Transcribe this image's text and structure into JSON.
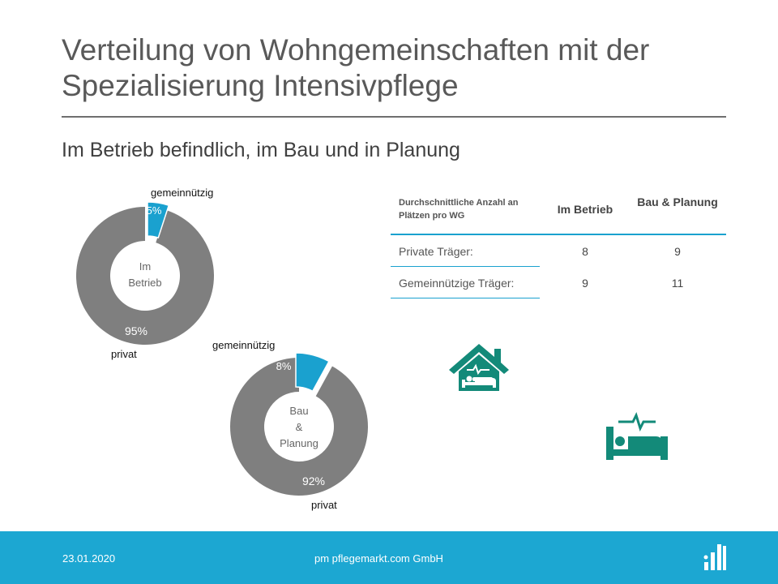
{
  "title": "Verteilung von Wohngemeinschaften mit der Spezialisierung Intensivpflege",
  "subtitle": "Im Betrieb befindlich, im Bau und in Planung",
  "colors": {
    "privat": "#7f7f7f",
    "gemeinnuetzig": "#1aa1cf",
    "icon": "#138a79",
    "footer": "#1ca7d2"
  },
  "chart_data": [
    {
      "type": "pie",
      "center_label": [
        "Im",
        "Betrieb"
      ],
      "slices": [
        {
          "name": "gemeinnützig",
          "value": 5,
          "label": "5%"
        },
        {
          "name": "privat",
          "value": 95,
          "label": "95%"
        }
      ]
    },
    {
      "type": "pie",
      "center_label": [
        "Bau",
        "&",
        "Planung"
      ],
      "slices": [
        {
          "name": "gemeinnützig",
          "value": 8,
          "label": "8%"
        },
        {
          "name": "privat",
          "value": 92,
          "label": "92%"
        }
      ]
    }
  ],
  "table": {
    "description": "Durchschnittliche  Anzahl an Plätzen pro WG",
    "columns": [
      "Im Betrieb",
      "Bau & Planung"
    ],
    "rows": [
      {
        "label": "Private Träger:",
        "values": [
          "8",
          "9"
        ]
      },
      {
        "label": "Gemeinnützige Träger:",
        "values": [
          "9",
          "11"
        ]
      }
    ]
  },
  "icons": [
    "house-medical-icon",
    "hospital-bed-icon"
  ],
  "footer": {
    "date": "23.01.2020",
    "company": "pm pflegemarkt.com GmbH"
  }
}
